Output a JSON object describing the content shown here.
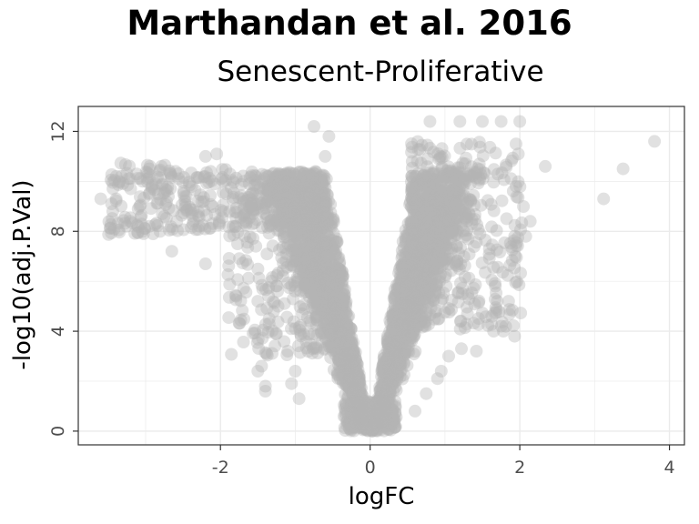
{
  "chart_data": {
    "type": "scatter",
    "title": "Marthandan et al. 2016",
    "subtitle": "Senescent-Proliferative",
    "xlabel": "logFC",
    "ylabel": "-log10(adj.P.Val)",
    "xlim": [
      -3.9,
      4.2
    ],
    "ylim": [
      -0.55,
      13.0
    ],
    "xticks": [
      -2,
      0,
      2,
      4
    ],
    "yticks": [
      0,
      4,
      8,
      12
    ],
    "grid": true,
    "point_color": "#b3b3b3",
    "point_opacity": 0.4,
    "outlier_points": [
      {
        "x": 3.8,
        "y": 11.6
      },
      {
        "x": 3.38,
        "y": 10.5
      },
      {
        "x": 3.12,
        "y": 9.3
      },
      {
        "x": 2.34,
        "y": 10.6
      },
      {
        "x": 2.0,
        "y": 12.4
      },
      {
        "x": 1.95,
        "y": 11.5
      },
      {
        "x": 1.98,
        "y": 11.1
      },
      {
        "x": 1.75,
        "y": 12.4
      },
      {
        "x": 1.95,
        "y": 9.8
      },
      {
        "x": 2.14,
        "y": 8.4
      },
      {
        "x": 2.08,
        "y": 7.8
      },
      {
        "x": 1.93,
        "y": 7.8
      },
      {
        "x": 1.85,
        "y": 5.2
      },
      {
        "x": 1.7,
        "y": 5.2
      },
      {
        "x": 1.65,
        "y": 4.0
      },
      {
        "x": 1.93,
        "y": 3.8
      },
      {
        "x": 1.78,
        "y": 4.0
      },
      {
        "x": 1.42,
        "y": 3.2
      },
      {
        "x": 1.22,
        "y": 3.3
      },
      {
        "x": 1.5,
        "y": 12.4
      },
      {
        "x": 1.2,
        "y": 12.4
      },
      {
        "x": 0.8,
        "y": 12.4
      },
      {
        "x": 1.3,
        "y": 4.7
      },
      {
        "x": -3.6,
        "y": 9.3
      },
      {
        "x": -3.35,
        "y": 10.0
      },
      {
        "x": -3.2,
        "y": 9.7
      },
      {
        "x": -3.1,
        "y": 8.9
      },
      {
        "x": -2.95,
        "y": 8.2
      },
      {
        "x": -2.9,
        "y": 7.9
      },
      {
        "x": -2.65,
        "y": 7.2
      },
      {
        "x": -2.6,
        "y": 10.4
      },
      {
        "x": -2.95,
        "y": 10.5
      },
      {
        "x": -2.2,
        "y": 6.7
      },
      {
        "x": -2.05,
        "y": 11.1
      },
      {
        "x": -2.2,
        "y": 11.0
      },
      {
        "x": -0.75,
        "y": 12.2
      },
      {
        "x": -0.55,
        "y": 11.8
      },
      {
        "x": -0.6,
        "y": 11.0
      },
      {
        "x": -1.5,
        "y": 2.4
      },
      {
        "x": -1.45,
        "y": 2.6
      },
      {
        "x": -1.4,
        "y": 1.8
      },
      {
        "x": -1.4,
        "y": 1.6
      },
      {
        "x": -1.05,
        "y": 1.9
      },
      {
        "x": -0.95,
        "y": 1.3
      },
      {
        "x": -1.25,
        "y": 3.9
      },
      {
        "x": -1.1,
        "y": 3.2
      },
      {
        "x": -1.0,
        "y": 2.4
      },
      {
        "x": -1.35,
        "y": 4.3
      },
      {
        "x": -1.0,
        "y": 4.1
      },
      {
        "x": -1.5,
        "y": 5.2
      },
      {
        "x": 0.9,
        "y": 2.1
      },
      {
        "x": 0.95,
        "y": 2.4
      },
      {
        "x": 0.75,
        "y": 1.5
      },
      {
        "x": 0.6,
        "y": 0.8
      },
      {
        "x": 1.05,
        "y": 3.0
      }
    ]
  }
}
